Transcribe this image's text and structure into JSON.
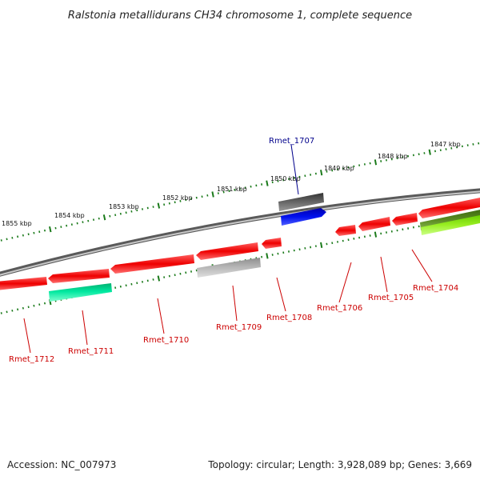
{
  "title": "Ralstonia metallidurans CH34 chromosome 1, complete sequence",
  "scale": {
    "color": "#1a7a1a",
    "labels": [
      "1855 kbp",
      "1854 kbp",
      "1853 kbp",
      "1852 kbp",
      "1851 kbp",
      "1850 kbp",
      "1849 kbp",
      "1848 kbp",
      "1847 kbp"
    ]
  },
  "genes": {
    "labels": [
      {
        "text": "Rmet_1707",
        "color": "#00008b"
      },
      {
        "text": "Rmet_1712",
        "color": "#cc0000"
      },
      {
        "text": "Rmet_1711",
        "color": "#cc0000"
      },
      {
        "text": "Rmet_1710",
        "color": "#cc0000"
      },
      {
        "text": "Rmet_1709",
        "color": "#cc0000"
      },
      {
        "text": "Rmet_1708",
        "color": "#cc0000"
      },
      {
        "text": "Rmet_1706",
        "color": "#cc0000"
      },
      {
        "text": "Rmet_1705",
        "color": "#cc0000"
      },
      {
        "text": "Rmet_1704",
        "color": "#cc0000"
      }
    ]
  },
  "colors": {
    "backbone": "#8a8a8a",
    "cds": "#ee0000",
    "pseudo": "#a8a8a8",
    "rna": "#00e5a0",
    "blue": "#0010ee",
    "dark": "#555555",
    "olive": "#5a8a20",
    "lime": "#88ee22"
  },
  "footer": {
    "accession": "Accession: NC_007973",
    "summary": "Topology: circular; Length: 3,928,089 bp; Genes: 3,669"
  }
}
